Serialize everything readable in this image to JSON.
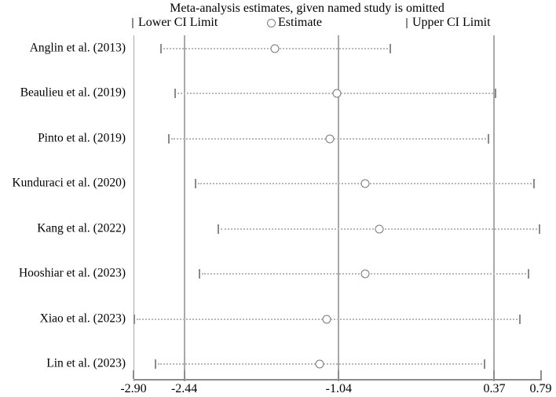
{
  "title": "Meta-analysis estimates, given named study is omitted",
  "legend": {
    "lower": "Lower CI Limit",
    "estimate": "Estimate",
    "upper": "Upper CI Limit"
  },
  "colors": {
    "background": "#ffffff",
    "text": "#000000",
    "gridline": "#a9a9a9",
    "axis": "#8c8c8c",
    "ci_dotted_line": "#b8b8b8",
    "ci_tick": "#8a8a8a",
    "estimate_marker_stroke": "#787878"
  },
  "chart_data": {
    "type": "scatter",
    "subtype": "forest-leave-one-out",
    "title": "Meta-analysis estimates, given named study is omitted",
    "xlabel": "",
    "ylabel": "",
    "xlim": [
      -2.9,
      0.79
    ],
    "xtick_values": [
      -2.9,
      -2.44,
      -1.04,
      0.37,
      0.79
    ],
    "xtick_labels": [
      "-2.90",
      "-2.44",
      "-1.04",
      "0.37",
      "0.79"
    ],
    "gridlines_x": [
      -2.44,
      -1.04,
      0.37
    ],
    "frame_x": -2.9,
    "grid": "vertical-only",
    "legend_position": "top",
    "series_meaning": [
      "lower_ci",
      "estimate",
      "upper_ci"
    ],
    "rows": [
      {
        "study": "Anglin et al. (2013)",
        "lower": -2.65,
        "estimate": -1.62,
        "upper": -0.57
      },
      {
        "study": "Beaulieu et al. (2019)",
        "lower": -2.52,
        "estimate": -1.06,
        "upper": 0.38
      },
      {
        "study": "Pinto et al. (2019)",
        "lower": -2.58,
        "estimate": -1.12,
        "upper": 0.32
      },
      {
        "study": "Kunduraci et al. (2020)",
        "lower": -2.34,
        "estimate": -0.8,
        "upper": 0.73
      },
      {
        "study": "Kang et al. (2022)",
        "lower": -2.13,
        "estimate": -0.67,
        "upper": 0.78
      },
      {
        "study": "Hooshiar et al. (2023)",
        "lower": -2.3,
        "estimate": -0.8,
        "upper": 0.68
      },
      {
        "study": "Xiao et al. (2023)",
        "lower": -2.89,
        "estimate": -1.15,
        "upper": 0.6
      },
      {
        "study": "Lin et al. (2023)",
        "lower": -2.7,
        "estimate": -1.21,
        "upper": 0.28
      }
    ]
  }
}
